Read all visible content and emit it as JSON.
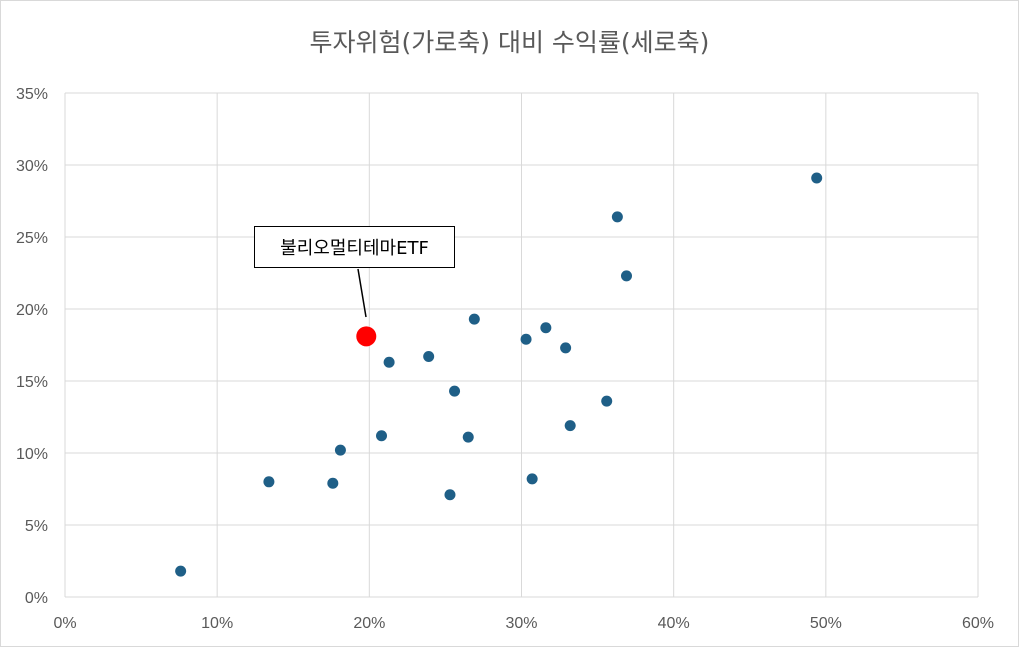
{
  "chart_data": {
    "type": "scatter",
    "title": "투자위험(가로축) 대비 수익률(세로축)",
    "xlim": [
      0,
      60
    ],
    "ylim": [
      0,
      35
    ],
    "x_ticks": [
      "0%",
      "10%",
      "20%",
      "30%",
      "40%",
      "50%",
      "60%"
    ],
    "y_ticks": [
      "0%",
      "5%",
      "10%",
      "15%",
      "20%",
      "25%",
      "30%",
      "35%"
    ],
    "grid": true,
    "series": [
      {
        "color": "#1f5f87",
        "points": [
          {
            "x": 7.6,
            "y": 1.8
          },
          {
            "x": 13.4,
            "y": 8.0
          },
          {
            "x": 17.6,
            "y": 7.9
          },
          {
            "x": 18.1,
            "y": 10.2
          },
          {
            "x": 20.8,
            "y": 11.2
          },
          {
            "x": 21.3,
            "y": 16.3
          },
          {
            "x": 23.9,
            "y": 16.7
          },
          {
            "x": 25.3,
            "y": 7.1
          },
          {
            "x": 25.6,
            "y": 14.3
          },
          {
            "x": 26.5,
            "y": 11.1
          },
          {
            "x": 26.9,
            "y": 19.3
          },
          {
            "x": 30.3,
            "y": 17.9
          },
          {
            "x": 30.7,
            "y": 8.2
          },
          {
            "x": 31.6,
            "y": 18.7
          },
          {
            "x": 32.9,
            "y": 17.3
          },
          {
            "x": 33.2,
            "y": 11.9
          },
          {
            "x": 35.6,
            "y": 13.6
          },
          {
            "x": 36.3,
            "y": 26.4
          },
          {
            "x": 36.9,
            "y": 22.3
          },
          {
            "x": 49.4,
            "y": 29.1
          }
        ]
      },
      {
        "color": "#ff0000",
        "points": [
          {
            "x": 19.8,
            "y": 18.1
          }
        ]
      }
    ],
    "annotation": {
      "text": "불리오멀티테마ETF",
      "x": 19.8,
      "y": 18.1
    }
  }
}
